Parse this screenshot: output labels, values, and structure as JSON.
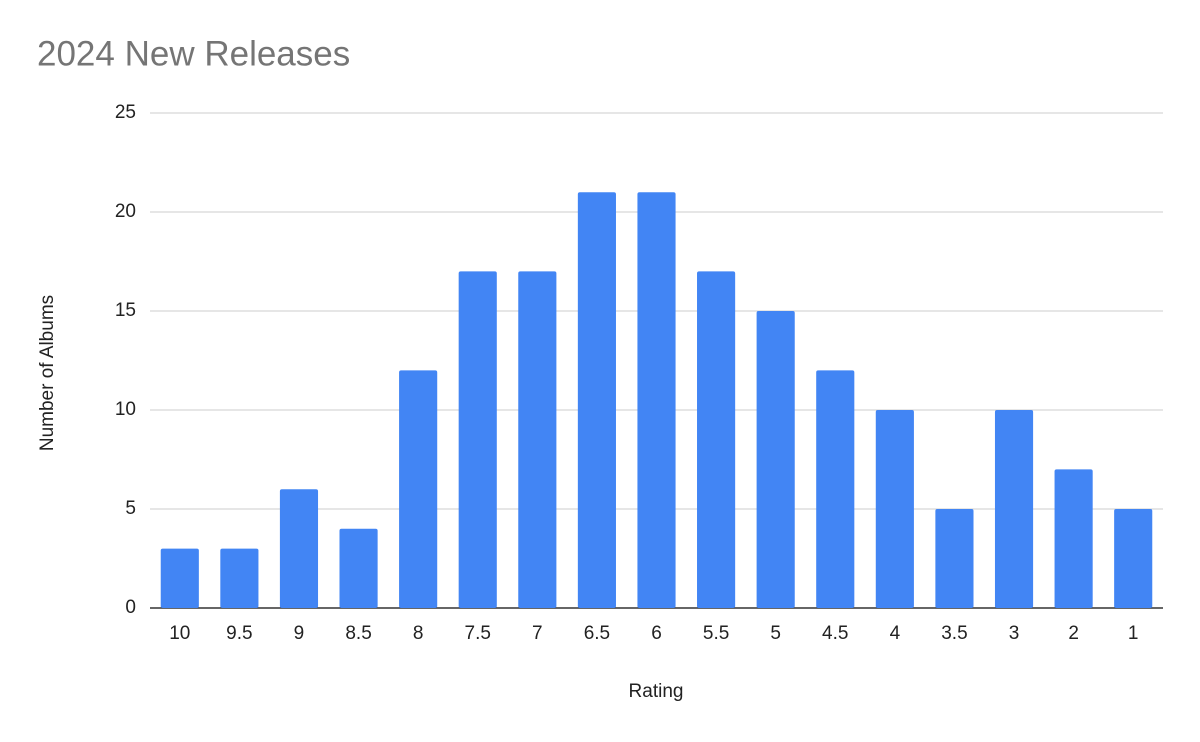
{
  "chart_data": {
    "type": "bar",
    "title": "2024 New Releases",
    "x_label": "Rating",
    "y_label": "Number of Albums",
    "categories": [
      "10",
      "9.5",
      "9",
      "8.5",
      "8",
      "7.5",
      "7",
      "6.5",
      "6",
      "5.5",
      "5",
      "4.5",
      "4",
      "3.5",
      "3",
      "2",
      "1"
    ],
    "values": [
      3,
      3,
      6,
      4,
      12,
      17,
      17,
      21,
      21,
      17,
      15,
      12,
      10,
      5,
      10,
      7,
      5
    ],
    "color": "#4285f4",
    "ylim": [
      0,
      25
    ],
    "yticks": [
      0,
      5,
      10,
      15,
      20,
      25
    ],
    "grid": true
  }
}
